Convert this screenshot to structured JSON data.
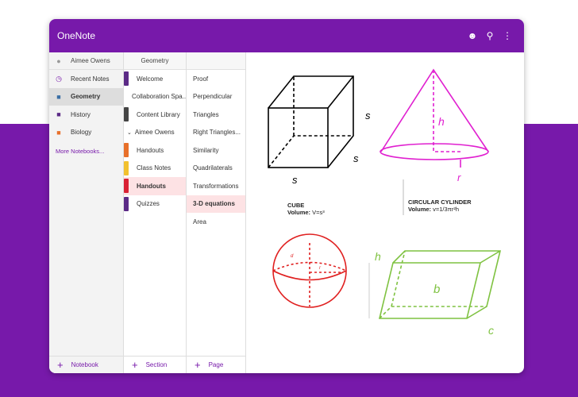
{
  "app": {
    "title": "OneNote"
  },
  "header_icons": [
    "smiley-icon",
    "search-icon",
    "more-vertical-icon"
  ],
  "notebooks": {
    "user": "Aimee Owens",
    "items": [
      {
        "label": "Recent Notes",
        "icon": "clock-icon",
        "color": "#7719aa"
      },
      {
        "label": "Geometry",
        "icon": "notebook-icon",
        "color": "#3a6ea5",
        "selected": true
      },
      {
        "label": "History",
        "icon": "notebook-icon",
        "color": "#5b2a86"
      },
      {
        "label": "Biology",
        "icon": "notebook-icon",
        "color": "#e8702a"
      }
    ],
    "more": "More Notebooks...",
    "add": "Notebook"
  },
  "sections": {
    "title": "Geometry",
    "items": [
      {
        "label": "Welcome",
        "color": "#5b2a86"
      },
      {
        "label": "Collaboration Spa...",
        "color": "#444"
      },
      {
        "label": "Content Library",
        "color": "#444"
      },
      {
        "label": "Aimee Owens",
        "group": true,
        "color": "#444"
      },
      {
        "label": "Handouts",
        "color": "#e8702a"
      },
      {
        "label": "Class Notes",
        "color": "#f2c12e"
      },
      {
        "label": "Handouts",
        "color": "#d92134",
        "selected": true
      },
      {
        "label": "Quizzes",
        "color": "#5b2a86"
      }
    ],
    "add": "Section"
  },
  "pages": {
    "items": [
      "Proof",
      "Perpendicular",
      "Triangles",
      "Right Triangles...",
      "Similarity",
      "Quadrilaterals",
      "Transformations",
      "3-D equations",
      "Area"
    ],
    "selected": 7,
    "add": "Page"
  },
  "canvas": {
    "cube": {
      "title": "CUBE",
      "vol_label": "Volume:",
      "vol": "V=s³",
      "labels": [
        "s",
        "s",
        "s"
      ]
    },
    "cone": {
      "title": "CIRCULAR CYLINDER",
      "vol_label": "Volume:",
      "vol": "v=1/3πr²h",
      "labels": [
        "h",
        "r"
      ]
    },
    "sphere": {
      "labels": [
        "d",
        "r"
      ]
    },
    "prism": {
      "labels": [
        "h",
        "b",
        "c"
      ]
    },
    "colors": {
      "cube": "#000000",
      "cone": "#e020d0",
      "sphere": "#e02020",
      "prism": "#7fc241"
    }
  }
}
